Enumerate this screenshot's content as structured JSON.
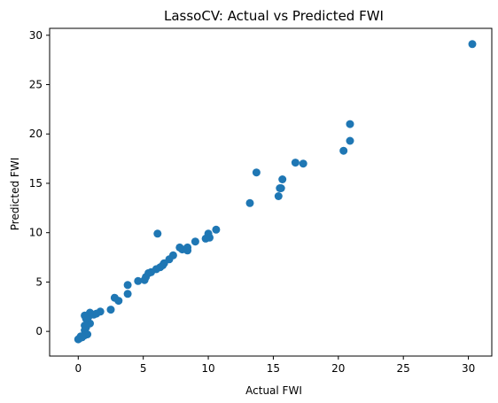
{
  "chart_data": {
    "type": "scatter",
    "title": "LassoCV: Actual vs Predicted FWI",
    "xlabel": "Actual FWI",
    "ylabel": "Predicted FWI",
    "xlim": [
      -2.2,
      31.8
    ],
    "ylim": [
      -2.5,
      30.7
    ],
    "xticks": [
      0,
      5,
      10,
      15,
      20,
      25,
      30
    ],
    "yticks": [
      0,
      5,
      10,
      15,
      20,
      25,
      30
    ],
    "grid": false,
    "color": "#1f77b4",
    "points": [
      [
        30.3,
        29.1
      ],
      [
        20.9,
        21.0
      ],
      [
        20.9,
        19.3
      ],
      [
        20.4,
        18.3
      ],
      [
        17.3,
        17.0
      ],
      [
        16.7,
        17.1
      ],
      [
        13.7,
        16.1
      ],
      [
        15.7,
        15.4
      ],
      [
        15.6,
        14.5
      ],
      [
        15.5,
        14.5
      ],
      [
        15.4,
        13.7
      ],
      [
        13.2,
        13.0
      ],
      [
        10.6,
        10.3
      ],
      [
        10.0,
        9.9
      ],
      [
        10.1,
        9.5
      ],
      [
        9.8,
        9.4
      ],
      [
        9.0,
        9.1
      ],
      [
        8.4,
        8.2
      ],
      [
        8.4,
        8.5
      ],
      [
        8.0,
        8.3
      ],
      [
        7.8,
        8.5
      ],
      [
        7.3,
        7.7
      ],
      [
        7.0,
        7.3
      ],
      [
        6.6,
        6.9
      ],
      [
        6.5,
        6.7
      ],
      [
        6.3,
        6.5
      ],
      [
        6.1,
        9.9
      ],
      [
        6.0,
        6.3
      ],
      [
        5.6,
        6.0
      ],
      [
        5.4,
        5.9
      ],
      [
        5.1,
        5.2
      ],
      [
        5.2,
        5.5
      ],
      [
        4.6,
        5.1
      ],
      [
        3.8,
        4.7
      ],
      [
        3.8,
        3.8
      ],
      [
        3.1,
        3.1
      ],
      [
        2.8,
        3.4
      ],
      [
        2.5,
        2.2
      ],
      [
        1.7,
        2.0
      ],
      [
        1.4,
        1.8
      ],
      [
        1.2,
        1.7
      ],
      [
        0.9,
        1.9
      ],
      [
        0.8,
        1.5
      ],
      [
        0.9,
        0.8
      ],
      [
        0.5,
        1.6
      ],
      [
        0.6,
        1.3
      ],
      [
        0.6,
        0.4
      ],
      [
        0.5,
        0.1
      ],
      [
        0.7,
        -0.3
      ],
      [
        0.5,
        -0.4
      ],
      [
        0.2,
        -0.5
      ],
      [
        0.1,
        -0.7
      ],
      [
        0.0,
        -0.8
      ],
      [
        0.3,
        -0.6
      ],
      [
        0.5,
        0.6
      ]
    ]
  }
}
